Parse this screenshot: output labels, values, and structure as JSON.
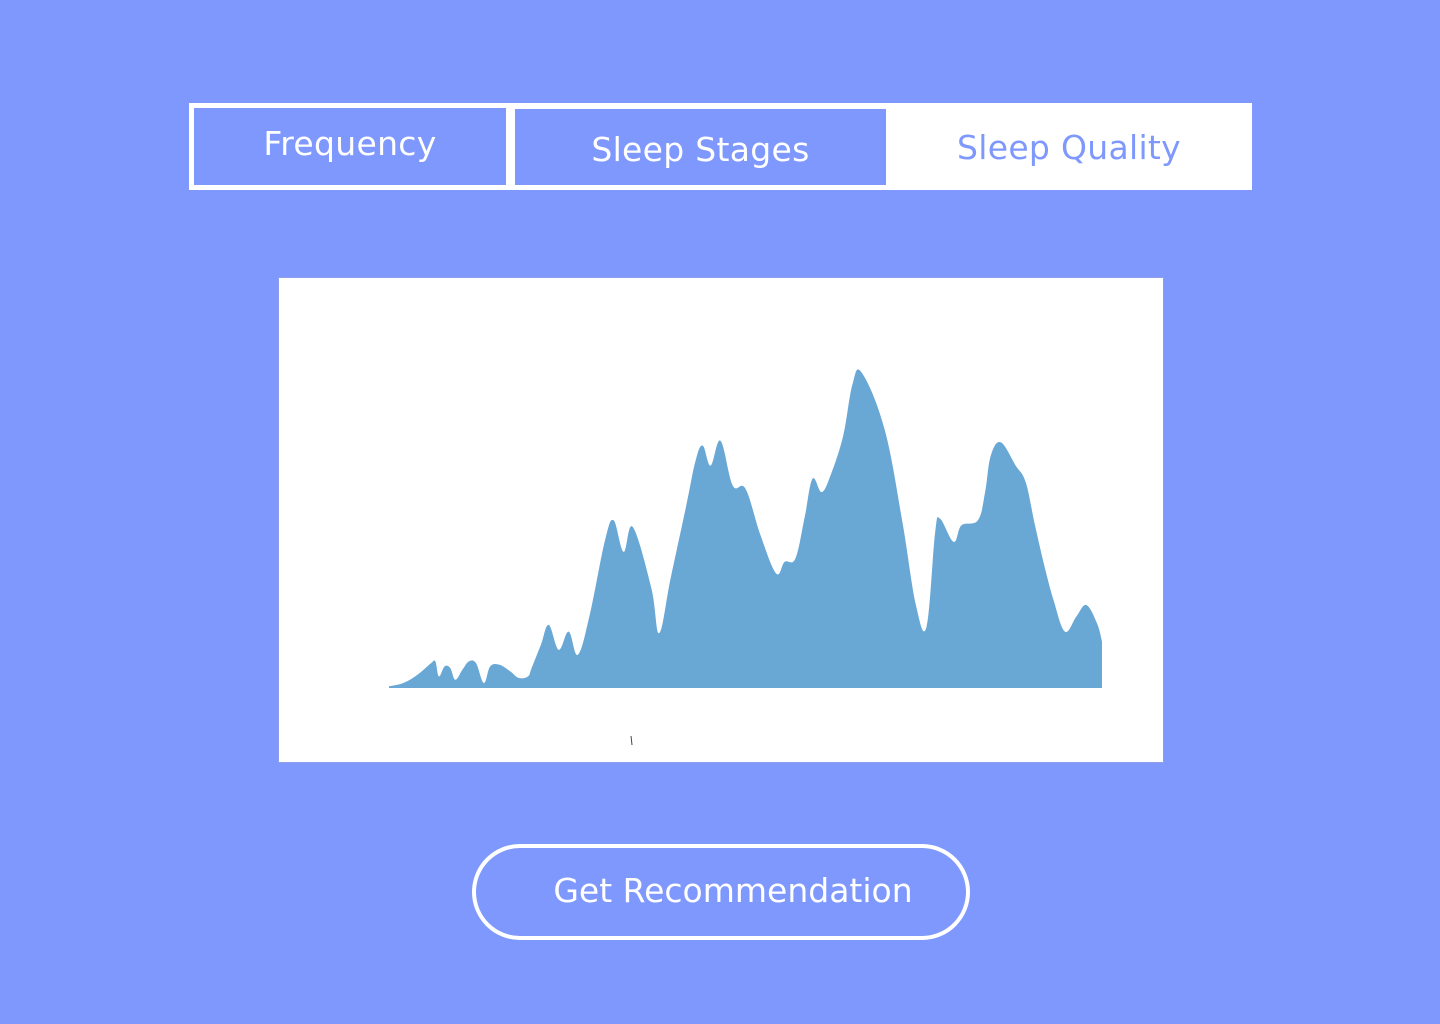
{
  "tabs": [
    {
      "label": "Frequency",
      "active": false
    },
    {
      "label": "Sleep Stages",
      "active": false
    },
    {
      "label": "Sleep Quality",
      "active": true
    }
  ],
  "colors": {
    "background": "#7f98fd",
    "panel": "#ffffff",
    "area_fill": "#69a7d5",
    "button_border": "#ffffff"
  },
  "chart_data": {
    "type": "area",
    "title": "",
    "xlabel": "",
    "ylabel": "",
    "x_range": [
      0,
      100
    ],
    "ylim": [
      0,
      100
    ],
    "grid": false,
    "series": [
      {
        "fill": "#69a7d5",
        "points": [
          [
            0.0,
            0.5
          ],
          [
            2.0,
            1.5
          ],
          [
            4.0,
            4.0
          ],
          [
            5.9,
            7.5
          ],
          [
            6.5,
            8.0
          ],
          [
            7.0,
            3.5
          ],
          [
            7.8,
            6.5
          ],
          [
            8.6,
            6.0
          ],
          [
            9.3,
            2.5
          ],
          [
            10.3,
            5.5
          ],
          [
            11.2,
            8.0
          ],
          [
            12.2,
            7.5
          ],
          [
            13.3,
            1.5
          ],
          [
            14.2,
            6.5
          ],
          [
            15.5,
            7.0
          ],
          [
            17.0,
            5.0
          ],
          [
            18.2,
            3.0
          ],
          [
            19.5,
            3.5
          ],
          [
            20.0,
            6.0
          ],
          [
            21.3,
            13.0
          ],
          [
            22.4,
            19.0
          ],
          [
            23.8,
            11.5
          ],
          [
            25.2,
            17.0
          ],
          [
            26.5,
            10.0
          ],
          [
            28.2,
            22.5
          ],
          [
            30.3,
            44.5
          ],
          [
            31.5,
            50.5
          ],
          [
            32.9,
            41.0
          ],
          [
            34.2,
            48.5
          ],
          [
            36.8,
            30.0
          ],
          [
            37.9,
            16.5
          ],
          [
            39.5,
            33.0
          ],
          [
            41.7,
            55.0
          ],
          [
            43.0,
            68.5
          ],
          [
            44.0,
            73.0
          ],
          [
            45.1,
            67.0
          ],
          [
            46.5,
            74.5
          ],
          [
            48.2,
            61.0
          ],
          [
            50.0,
            60.0
          ],
          [
            52.1,
            46.0
          ],
          [
            54.3,
            34.5
          ],
          [
            55.5,
            38.0
          ],
          [
            57.0,
            39.0
          ],
          [
            58.3,
            51.5
          ],
          [
            59.4,
            63.0
          ],
          [
            60.7,
            59.0
          ],
          [
            62.0,
            64.5
          ],
          [
            63.7,
            76.0
          ],
          [
            65.0,
            91.5
          ],
          [
            66.3,
            95.0
          ],
          [
            69.5,
            78.0
          ],
          [
            72.0,
            50.0
          ],
          [
            73.9,
            25.0
          ],
          [
            75.4,
            18.5
          ],
          [
            76.6,
            47.0
          ],
          [
            77.3,
            51.0
          ],
          [
            79.2,
            44.0
          ],
          [
            80.3,
            49.0
          ],
          [
            82.6,
            50.5
          ],
          [
            83.6,
            59.0
          ],
          [
            84.4,
            70.0
          ],
          [
            85.8,
            74.0
          ],
          [
            87.9,
            67.0
          ],
          [
            89.3,
            62.0
          ],
          [
            90.6,
            49.0
          ],
          [
            91.9,
            37.0
          ],
          [
            93.2,
            26.5
          ],
          [
            94.8,
            17.0
          ],
          [
            96.4,
            21.5
          ],
          [
            97.8,
            25.0
          ],
          [
            99.3,
            19.5
          ],
          [
            100.0,
            14.0
          ]
        ]
      }
    ]
  },
  "button": {
    "label": "Get Recommendation"
  }
}
